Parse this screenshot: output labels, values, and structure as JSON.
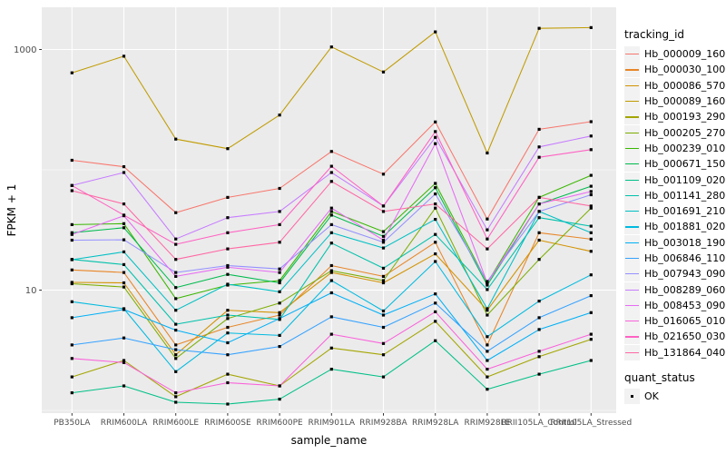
{
  "figure": {
    "background": "#FFFFFF",
    "panel_bg": "#EBEBEB",
    "grid_color": "#FFFFFF",
    "tick_color": "#333333",
    "tick_label_color": "#4D4D4D",
    "axis_title_color": "#000000",
    "legend_key_bg": "#F2F2F2"
  },
  "y_axis": {
    "title": "FPKM + 1",
    "scale": "log10",
    "major_ticks": [
      {
        "label": "1000",
        "value": 1000
      },
      {
        "label": "10",
        "value": 10
      }
    ],
    "minor_values": [
      100,
      1
    ]
  },
  "x_axis": {
    "title": "sample_name"
  },
  "legend": {
    "title": "tracking_id"
  },
  "quant_legend": {
    "title": "quant_status",
    "items": [
      {
        "label": "OK"
      }
    ],
    "marker_color": "#000000"
  },
  "chart_data": {
    "type": "line",
    "yscale": "log10",
    "ylim": [
      1,
      1600
    ],
    "xlabel": "sample_name",
    "ylabel": "FPKM + 1",
    "legend_position": "right",
    "grid": true,
    "marker": {
      "shape": "square",
      "color": "#000000",
      "meaning": "quant_status = OK"
    },
    "x": [
      "PB350LA",
      "RRIM600LA",
      "RRIM600LE",
      "RRIM600SE",
      "RRIM600PE",
      "RRIM901LA",
      "RRIM928BA",
      "RRIM928LA",
      "RRIM928LE",
      "RRII105LA_Control",
      "RRII105LA_Stressed"
    ],
    "series": [
      {
        "name": "Hb_000009_160",
        "color": "#F8766D",
        "values": [
          120,
          106,
          44,
          59,
          70,
          142,
          92,
          250,
          39,
          217,
          251
        ]
      },
      {
        "name": "Hb_000030_100",
        "color": "#E88526",
        "values": [
          14.7,
          14,
          3.5,
          4.9,
          6.2,
          16,
          13,
          25,
          3.5,
          30,
          26.5
        ]
      },
      {
        "name": "Hb_000086_570",
        "color": "#D39200",
        "values": [
          11.6,
          11.5,
          2.9,
          6.8,
          6.5,
          14,
          11.5,
          20,
          6.8,
          26,
          21
        ]
      },
      {
        "name": "Hb_000089_160",
        "color": "#C09B00",
        "values": [
          640,
          880,
          180,
          150,
          285,
          1050,
          650,
          1400,
          138,
          1500,
          1520
        ]
      },
      {
        "name": "Hb_000193_290",
        "color": "#A3A500",
        "values": [
          1.9,
          2.6,
          1.3,
          2.0,
          1.6,
          3.3,
          2.9,
          5.5,
          1.9,
          2.8,
          3.9
        ]
      },
      {
        "name": "Hb_000205_270",
        "color": "#7CAE00",
        "values": [
          11.3,
          10.6,
          2.7,
          5.8,
          7.8,
          14.5,
          12,
          48,
          6.2,
          18,
          48
        ]
      },
      {
        "name": "Hb_000239_010",
        "color": "#39B600",
        "values": [
          35,
          35.7,
          8.5,
          11,
          12,
          45,
          30.6,
          77,
          11.5,
          59,
          90
        ]
      },
      {
        "name": "Hb_000671_150",
        "color": "#00BB4E",
        "values": [
          30,
          33,
          10.5,
          13.5,
          11.5,
          42,
          28,
          71,
          11,
          52,
          73
        ]
      },
      {
        "name": "Hb_001109_020",
        "color": "#00C087",
        "values": [
          1.4,
          1.6,
          1.17,
          1.13,
          1.24,
          2.2,
          1.9,
          3.8,
          1.5,
          2.0,
          2.6
        ]
      },
      {
        "name": "Hb_001141_280",
        "color": "#00C1AB",
        "values": [
          18,
          16.3,
          5.2,
          6.2,
          5.7,
          24.6,
          15.2,
          29,
          10.1,
          40,
          34
        ]
      },
      {
        "name": "Hb_001691_210",
        "color": "#00BFC4",
        "values": [
          17.9,
          20.8,
          6.8,
          11.2,
          9.7,
          30,
          22.4,
          38.7,
          7.0,
          45,
          30
        ]
      },
      {
        "name": "Hb_001881_020",
        "color": "#00BAE0",
        "values": [
          8.0,
          7.0,
          2.1,
          4.4,
          4.2,
          12,
          6.7,
          17.3,
          4.1,
          8.1,
          13.4
        ]
      },
      {
        "name": "Hb_003018_190",
        "color": "#00B0F6",
        "values": [
          5.9,
          6.9,
          4.65,
          3.65,
          5.8,
          9.5,
          6.2,
          9.3,
          2.6,
          4.7,
          6.5
        ]
      },
      {
        "name": "Hb_006846_110",
        "color": "#35A2FF",
        "values": [
          3.5,
          4.0,
          3.2,
          2.9,
          3.4,
          6.0,
          4.9,
          7.8,
          3.1,
          5.9,
          9.0
        ]
      },
      {
        "name": "Hb_007943_090",
        "color": "#9590FF",
        "values": [
          26,
          26.2,
          14,
          16,
          15,
          35,
          25,
          63,
          11.8,
          45,
          62
        ]
      },
      {
        "name": "Hb_008289_060",
        "color": "#C77CFF",
        "values": [
          74,
          95,
          26.6,
          40,
          45,
          95,
          50,
          186,
          31.7,
          155,
          191
        ]
      },
      {
        "name": "Hb_008453_090",
        "color": "#E76BF3",
        "values": [
          29,
          41.5,
          13,
          15.5,
          14,
          48,
          26,
          165,
          11.5,
          52,
          66
        ]
      },
      {
        "name": "Hb_016065_010",
        "color": "#FA62DB",
        "values": [
          2.7,
          2.5,
          1.4,
          1.7,
          1.6,
          4.3,
          3.6,
          6.6,
          2.2,
          3.1,
          4.3
        ]
      },
      {
        "name": "Hb_021650_030",
        "color": "#FF61C3",
        "values": [
          74,
          42,
          24,
          30,
          35,
          107,
          50,
          208,
          26.6,
          127,
          147
        ]
      },
      {
        "name": "Hb_131864_040",
        "color": "#FF67A4",
        "values": [
          67,
          52,
          18,
          22,
          25,
          80,
          45,
          52,
          22,
          59,
          50
        ]
      }
    ]
  }
}
